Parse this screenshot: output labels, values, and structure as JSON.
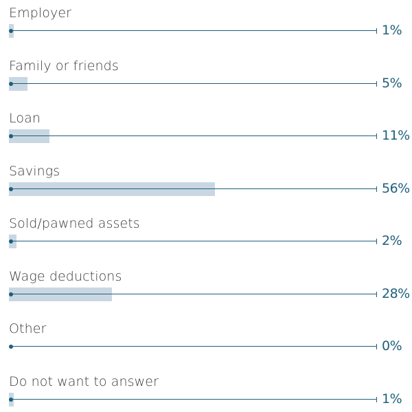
{
  "colors": {
    "bar": "#c9d7e3",
    "line": "#1f5f7a",
    "label": "#3a3a3a",
    "value": "#1f5f7a"
  },
  "chart_data": {
    "type": "bar",
    "orientation": "horizontal",
    "categories": [
      "Employer",
      "Family or friends",
      "Loan",
      "Savings",
      "Sold/pawned assets",
      "Wage deductions",
      "Other",
      "Do not want to answer"
    ],
    "values": [
      1,
      5,
      11,
      56,
      2,
      28,
      0,
      1
    ],
    "value_labels": [
      "1%",
      "5%",
      "11%",
      "56%",
      "2%",
      "28%",
      "0%",
      "1%"
    ],
    "unit": "%",
    "xlim": [
      0,
      100
    ],
    "grid": false,
    "legend": "none"
  }
}
